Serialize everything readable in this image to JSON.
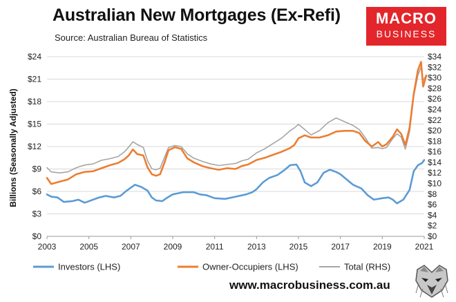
{
  "header": {
    "title": "Australian New Mortgages (Ex-Refi)",
    "subtitle": "Source: Australian Bureau of Statistics",
    "logo_line1": "MACRO",
    "logo_line2": "BUSINESS"
  },
  "footer": {
    "url": "www.macrobusiness.com.au"
  },
  "icons": {
    "mascot": "wolf-mascot-icon"
  },
  "chart_data": {
    "type": "line",
    "title": "Australian New Mortgages (Ex-Refi)",
    "subtitle": "Source: Australian Bureau of Statistics",
    "ylabel": "Billions (Seasonally Adjusted)",
    "ylim_left": [
      0,
      24
    ],
    "ylim_right": [
      0,
      34
    ],
    "xlim": [
      2003,
      2021
    ],
    "x_ticks": [
      "2003",
      "2005",
      "2007",
      "2009",
      "2011",
      "2013",
      "2015",
      "2017",
      "2019",
      "2021"
    ],
    "y_ticks_left": [
      "$0",
      "$3",
      "$6",
      "$9",
      "$12",
      "$15",
      "$18",
      "$21",
      "$24"
    ],
    "y_ticks_right": [
      "$0",
      "$2",
      "$4",
      "$6",
      "$8",
      "$10",
      "$12",
      "$14",
      "$16",
      "$18",
      "$20",
      "$22",
      "$24",
      "$26",
      "$28",
      "$30",
      "$32",
      "$34"
    ],
    "grid": true,
    "legend_position": "bottom",
    "series": [
      {
        "name": "Investors (LHS)",
        "axis": "left",
        "color": "#5b9bd5",
        "points": [
          [
            2003.0,
            5.6
          ],
          [
            2003.2,
            5.3
          ],
          [
            2003.5,
            5.2
          ],
          [
            2003.8,
            4.6
          ],
          [
            2004.2,
            4.7
          ],
          [
            2004.5,
            4.9
          ],
          [
            2004.8,
            4.5
          ],
          [
            2005.2,
            4.9
          ],
          [
            2005.5,
            5.2
          ],
          [
            2005.8,
            5.4
          ],
          [
            2006.2,
            5.2
          ],
          [
            2006.5,
            5.4
          ],
          [
            2006.8,
            6.1
          ],
          [
            2007.0,
            6.5
          ],
          [
            2007.2,
            6.9
          ],
          [
            2007.5,
            6.6
          ],
          [
            2007.8,
            6.1
          ],
          [
            2008.0,
            5.2
          ],
          [
            2008.2,
            4.8
          ],
          [
            2008.5,
            4.7
          ],
          [
            2008.7,
            5.1
          ],
          [
            2009.0,
            5.6
          ],
          [
            2009.5,
            5.9
          ],
          [
            2010.0,
            5.9
          ],
          [
            2010.3,
            5.6
          ],
          [
            2010.6,
            5.5
          ],
          [
            2011.0,
            5.1
          ],
          [
            2011.5,
            5.0
          ],
          [
            2012.0,
            5.3
          ],
          [
            2012.5,
            5.6
          ],
          [
            2012.8,
            5.9
          ],
          [
            2013.0,
            6.3
          ],
          [
            2013.3,
            7.2
          ],
          [
            2013.6,
            7.8
          ],
          [
            2014.0,
            8.2
          ],
          [
            2014.3,
            8.8
          ],
          [
            2014.6,
            9.5
          ],
          [
            2014.9,
            9.6
          ],
          [
            2015.1,
            8.7
          ],
          [
            2015.3,
            7.2
          ],
          [
            2015.6,
            6.7
          ],
          [
            2015.9,
            7.2
          ],
          [
            2016.2,
            8.5
          ],
          [
            2016.5,
            8.9
          ],
          [
            2016.8,
            8.6
          ],
          [
            2017.0,
            8.3
          ],
          [
            2017.3,
            7.6
          ],
          [
            2017.6,
            6.9
          ],
          [
            2018.0,
            6.4
          ],
          [
            2018.3,
            5.5
          ],
          [
            2018.6,
            4.9
          ],
          [
            2019.0,
            5.1
          ],
          [
            2019.3,
            5.2
          ],
          [
            2019.5,
            4.9
          ],
          [
            2019.7,
            4.4
          ],
          [
            2020.0,
            4.9
          ],
          [
            2020.3,
            6.2
          ],
          [
            2020.5,
            8.7
          ],
          [
            2020.7,
            9.5
          ],
          [
            2020.9,
            9.8
          ],
          [
            2021.0,
            10.2
          ]
        ]
      },
      {
        "name": "Owner-Occupiers (LHS)",
        "axis": "left",
        "color": "#ed7d31",
        "points": [
          [
            2003.0,
            7.8
          ],
          [
            2003.2,
            7.0
          ],
          [
            2003.6,
            7.3
          ],
          [
            2004.0,
            7.6
          ],
          [
            2004.4,
            8.3
          ],
          [
            2004.8,
            8.6
          ],
          [
            2005.2,
            8.7
          ],
          [
            2005.6,
            9.1
          ],
          [
            2006.0,
            9.5
          ],
          [
            2006.4,
            9.8
          ],
          [
            2006.7,
            10.3
          ],
          [
            2006.9,
            10.8
          ],
          [
            2007.1,
            11.6
          ],
          [
            2007.3,
            11.0
          ],
          [
            2007.6,
            10.8
          ],
          [
            2007.8,
            9.2
          ],
          [
            2008.0,
            8.3
          ],
          [
            2008.2,
            8.1
          ],
          [
            2008.4,
            8.3
          ],
          [
            2008.6,
            9.8
          ],
          [
            2008.8,
            11.5
          ],
          [
            2009.1,
            11.9
          ],
          [
            2009.4,
            11.7
          ],
          [
            2009.7,
            10.4
          ],
          [
            2010.0,
            9.9
          ],
          [
            2010.4,
            9.4
          ],
          [
            2010.8,
            9.1
          ],
          [
            2011.2,
            8.9
          ],
          [
            2011.6,
            9.1
          ],
          [
            2012.0,
            9.0
          ],
          [
            2012.3,
            9.4
          ],
          [
            2012.6,
            9.6
          ],
          [
            2013.0,
            10.2
          ],
          [
            2013.4,
            10.5
          ],
          [
            2013.8,
            10.9
          ],
          [
            2014.2,
            11.3
          ],
          [
            2014.6,
            11.8
          ],
          [
            2014.8,
            12.2
          ],
          [
            2015.0,
            13.1
          ],
          [
            2015.3,
            13.5
          ],
          [
            2015.6,
            13.2
          ],
          [
            2016.0,
            13.2
          ],
          [
            2016.4,
            13.5
          ],
          [
            2016.8,
            14.0
          ],
          [
            2017.2,
            14.1
          ],
          [
            2017.6,
            14.1
          ],
          [
            2017.9,
            13.8
          ],
          [
            2018.2,
            12.7
          ],
          [
            2018.5,
            12.0
          ],
          [
            2018.8,
            12.6
          ],
          [
            2019.0,
            12.0
          ],
          [
            2019.2,
            12.3
          ],
          [
            2019.5,
            13.3
          ],
          [
            2019.7,
            14.3
          ],
          [
            2019.9,
            13.7
          ],
          [
            2020.1,
            12.2
          ],
          [
            2020.3,
            14.5
          ],
          [
            2020.5,
            19.0
          ],
          [
            2020.7,
            22.2
          ],
          [
            2020.85,
            23.3
          ],
          [
            2020.95,
            20.0
          ],
          [
            2021.1,
            21.5
          ]
        ]
      },
      {
        "name": "Total (RHS)",
        "axis": "right",
        "color": "#a5a5a5",
        "points": [
          [
            2003.0,
            13.0
          ],
          [
            2003.2,
            12.2
          ],
          [
            2003.6,
            12.0
          ],
          [
            2004.0,
            12.2
          ],
          [
            2004.4,
            13.0
          ],
          [
            2004.8,
            13.5
          ],
          [
            2005.2,
            13.7
          ],
          [
            2005.6,
            14.4
          ],
          [
            2006.0,
            14.7
          ],
          [
            2006.4,
            15.1
          ],
          [
            2006.7,
            16.0
          ],
          [
            2006.9,
            16.9
          ],
          [
            2007.1,
            17.9
          ],
          [
            2007.3,
            17.4
          ],
          [
            2007.6,
            16.8
          ],
          [
            2007.8,
            14.3
          ],
          [
            2008.0,
            12.8
          ],
          [
            2008.2,
            12.6
          ],
          [
            2008.4,
            12.9
          ],
          [
            2008.6,
            14.9
          ],
          [
            2008.8,
            16.8
          ],
          [
            2009.1,
            17.2
          ],
          [
            2009.4,
            17.0
          ],
          [
            2009.7,
            15.6
          ],
          [
            2010.0,
            14.8
          ],
          [
            2010.4,
            14.2
          ],
          [
            2010.8,
            13.7
          ],
          [
            2011.2,
            13.4
          ],
          [
            2011.6,
            13.6
          ],
          [
            2012.0,
            13.8
          ],
          [
            2012.3,
            14.3
          ],
          [
            2012.6,
            14.6
          ],
          [
            2013.0,
            15.8
          ],
          [
            2013.4,
            16.6
          ],
          [
            2013.8,
            17.6
          ],
          [
            2014.2,
            18.6
          ],
          [
            2014.6,
            20.0
          ],
          [
            2014.8,
            20.5
          ],
          [
            2015.0,
            21.2
          ],
          [
            2015.3,
            20.2
          ],
          [
            2015.6,
            19.2
          ],
          [
            2016.0,
            20.0
          ],
          [
            2016.4,
            21.5
          ],
          [
            2016.8,
            22.4
          ],
          [
            2017.2,
            21.7
          ],
          [
            2017.6,
            21.0
          ],
          [
            2017.9,
            20.2
          ],
          [
            2018.2,
            18.6
          ],
          [
            2018.5,
            16.7
          ],
          [
            2018.8,
            16.8
          ],
          [
            2019.0,
            16.6
          ],
          [
            2019.2,
            16.8
          ],
          [
            2019.5,
            18.5
          ],
          [
            2019.7,
            19.4
          ],
          [
            2019.9,
            18.8
          ],
          [
            2020.1,
            16.5
          ],
          [
            2020.3,
            19.8
          ],
          [
            2020.5,
            26.5
          ],
          [
            2020.7,
            30.5
          ],
          [
            2020.85,
            32.0
          ],
          [
            2020.95,
            29.5
          ],
          [
            2021.1,
            30.5
          ]
        ]
      }
    ]
  }
}
